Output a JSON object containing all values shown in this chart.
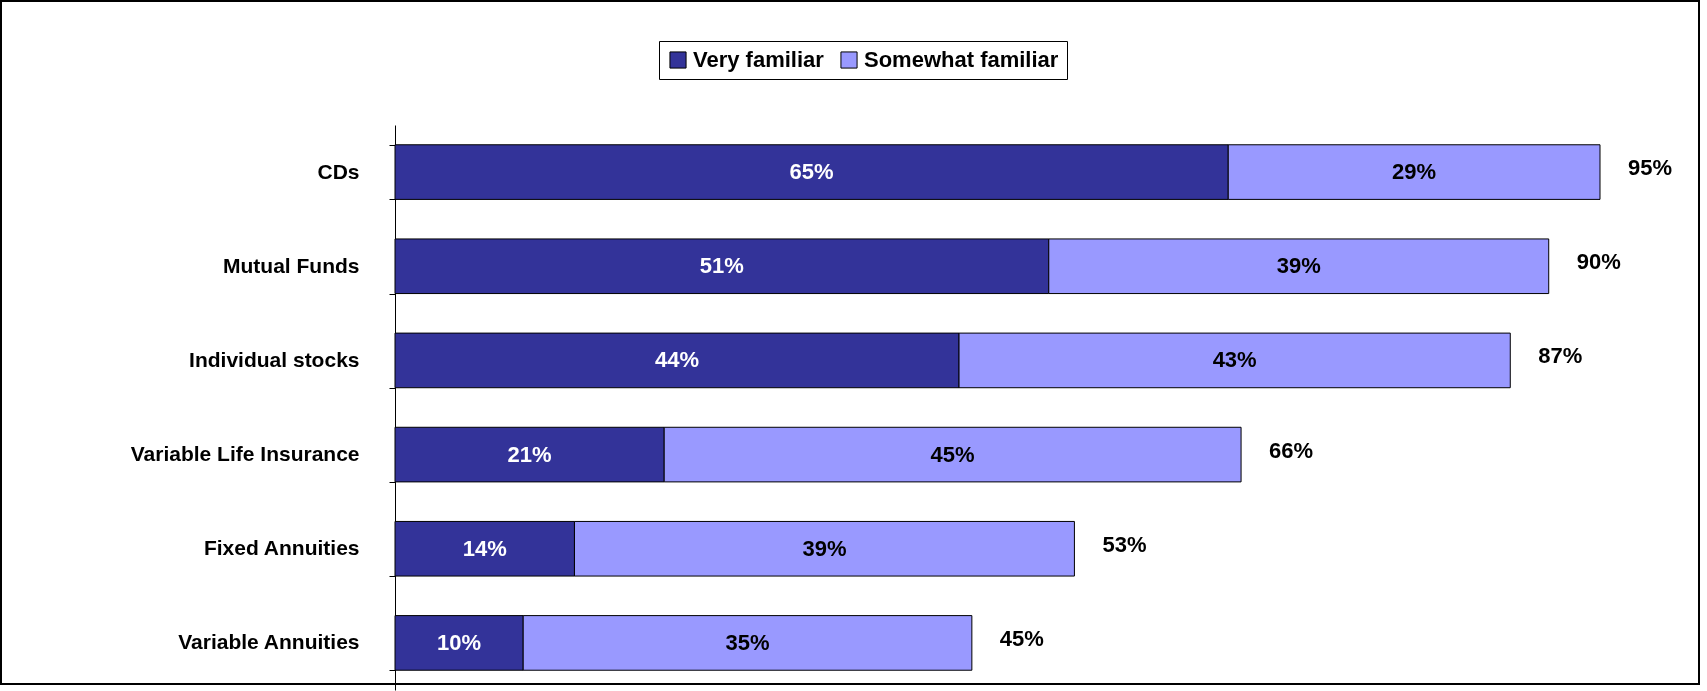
{
  "chart_data": {
    "type": "bar",
    "orientation": "horizontal",
    "stacked": true,
    "legend": "top",
    "categories": [
      "CDs",
      "Mutual Funds",
      "Individual stocks",
      "Variable Life Insurance",
      "Fixed Annuities",
      "Variable Annuities"
    ],
    "series": [
      {
        "name": "Very familiar",
        "color": "#333399",
        "values": [
          65,
          51,
          44,
          21,
          14,
          10
        ],
        "value_labels": [
          "65%",
          "51%",
          "44%",
          "21%",
          "14%",
          "10%"
        ]
      },
      {
        "name": "Somewhat familiar",
        "color": "#9999ff",
        "values": [
          29,
          39,
          43,
          45,
          39,
          35
        ],
        "value_labels": [
          "29%",
          "39%",
          "43%",
          "45%",
          "39%",
          "35%"
        ]
      }
    ],
    "totals": [
      "95%",
      "90%",
      "87%",
      "66%",
      "53%",
      "45%"
    ]
  }
}
